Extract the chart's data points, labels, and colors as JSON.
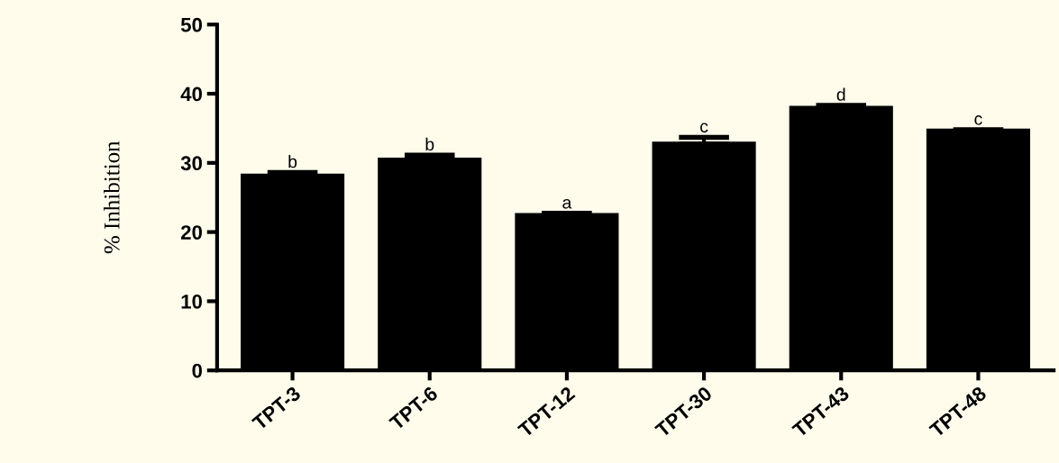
{
  "chart_data": {
    "type": "bar",
    "ylabel": "% Inhibition",
    "categories": [
      "TPT-3",
      "TPT-6",
      "TPT-12",
      "TPT-30",
      "TPT-43",
      "TPT-48"
    ],
    "values": [
      28.1,
      30.4,
      22.4,
      32.7,
      37.9,
      34.6
    ],
    "errors": [
      [
        28.1,
        28.6
      ],
      [
        30.4,
        31.1
      ],
      [
        22.4,
        22.7
      ],
      [
        32.7,
        33.7
      ],
      [
        37.9,
        38.3
      ],
      [
        34.6,
        34.8
      ]
    ],
    "color": "#000000",
    "ylim": [
      0,
      50
    ],
    "yticks": [
      0,
      10,
      20,
      30,
      40,
      50
    ],
    "grid": false,
    "annotations": [
      {
        "text": "b",
        "x": "TPT-3",
        "y": 28.6
      },
      {
        "text": "b",
        "x": "TPT-6",
        "y": 31.1
      },
      {
        "text": "a",
        "x": "TPT-12",
        "y": 22.7
      },
      {
        "text": "c",
        "x": "TPT-30",
        "y": 33.7
      },
      {
        "text": "d",
        "x": "TPT-43",
        "y": 38.3
      },
      {
        "text": "c",
        "x": "TPT-48",
        "y": 34.8
      }
    ]
  }
}
